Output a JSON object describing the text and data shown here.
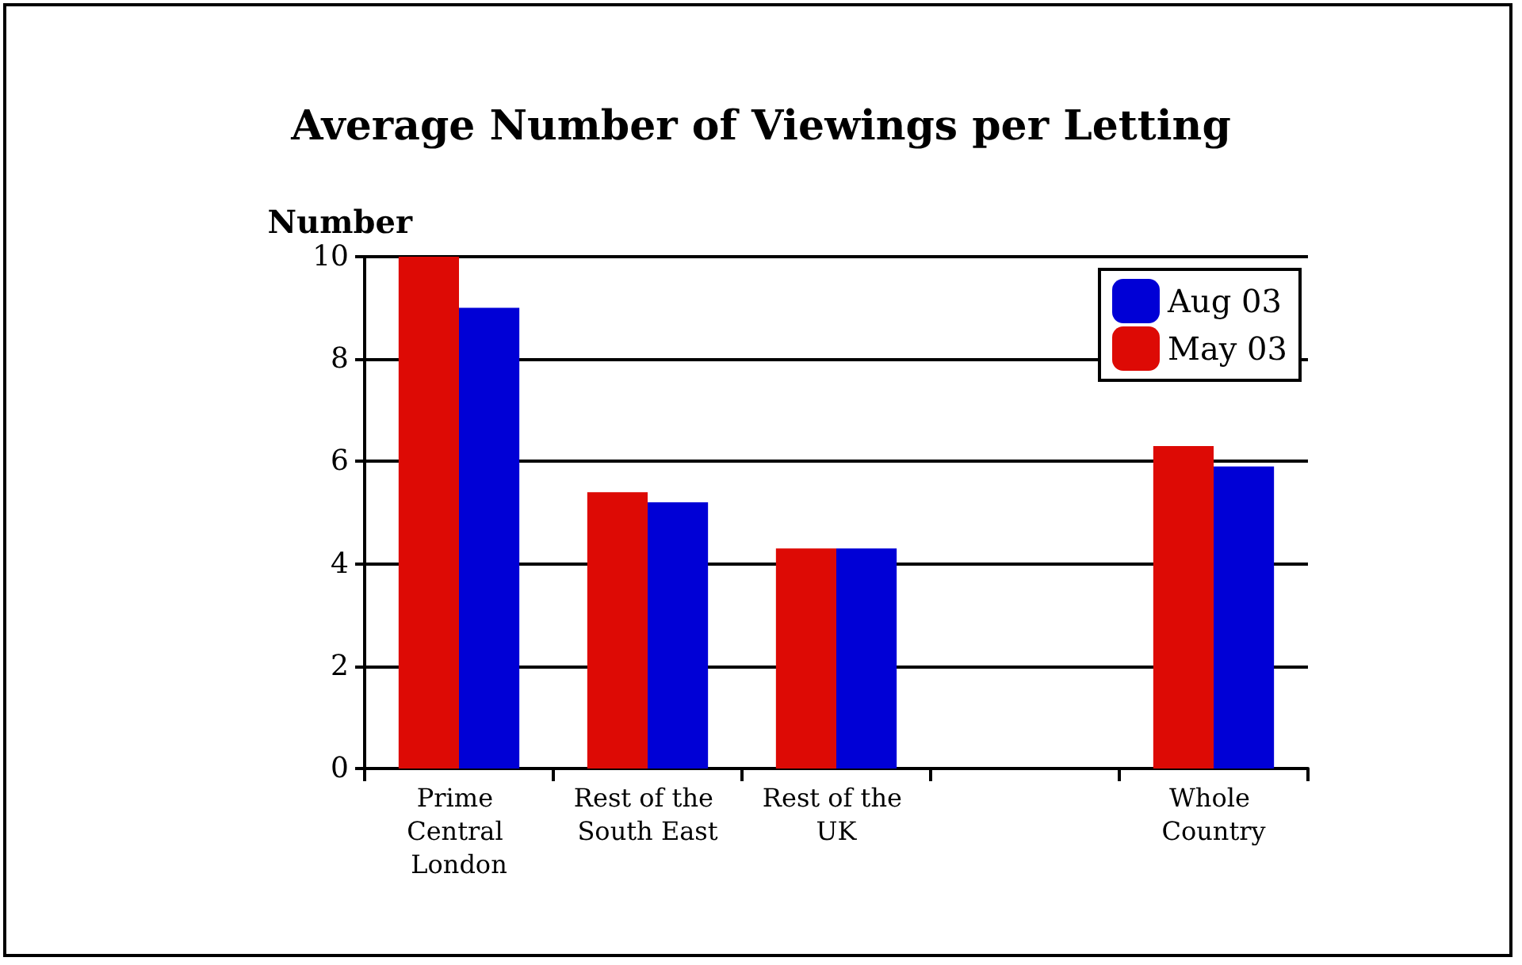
{
  "chart_data": {
    "type": "bar",
    "title": "Average Number of Viewings per Letting",
    "ylabel": "Number",
    "categories": [
      "Prime Central London",
      "Rest of the South East",
      "Rest of the UK",
      null,
      "Whole Country"
    ],
    "series": [
      {
        "name": "May 03",
        "color": "#dd0a05",
        "values": [
          10.0,
          5.4,
          4.3,
          null,
          6.3
        ]
      },
      {
        "name": "Aug 03",
        "color": "#0000d6",
        "values": [
          9.0,
          5.2,
          4.3,
          null,
          5.9
        ]
      }
    ],
    "ylim": [
      0,
      10
    ],
    "yticks": [
      0,
      2,
      4,
      6,
      8,
      10
    ],
    "grid": "y",
    "legend": "top right"
  }
}
